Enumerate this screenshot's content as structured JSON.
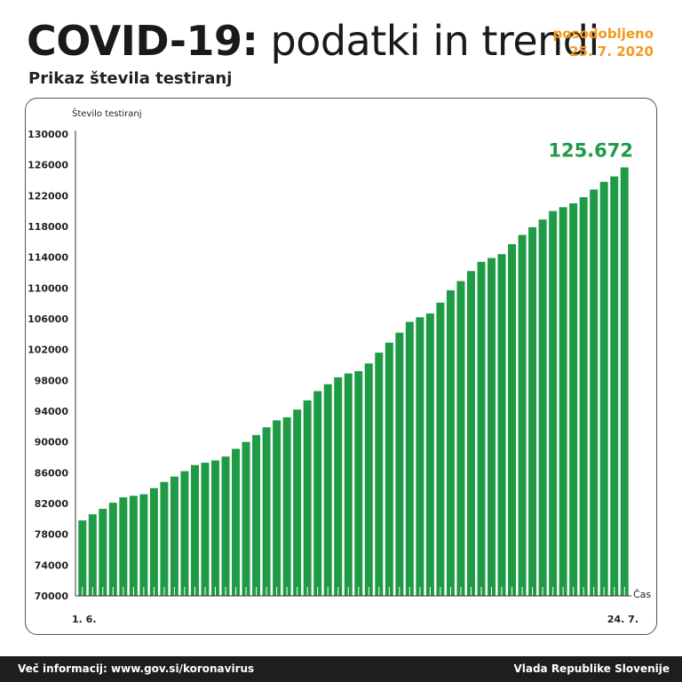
{
  "header": {
    "title_bold": "COVID-19:",
    "title_rest": "podatki in trendi",
    "updated_label": "posodobljeno",
    "updated_date": "25. 7. 2020",
    "subtitle": "Prikaz števila testiranj"
  },
  "footer": {
    "more_info": "Več informacij: www.gov.si/koronavirus",
    "publisher": "Vlada Republike Slovenije"
  },
  "colors": {
    "bar": "#1f9a45",
    "accent": "#f39a1e",
    "highlight": "#1f9a45"
  },
  "chart_data": {
    "type": "bar",
    "title": "Prikaz števila testiranj",
    "ylabel": "Število testiranj",
    "xlabel": "Čas",
    "x_start_label": "1. 6.",
    "x_end_label": "24. 7.",
    "highlight_label": "125.672",
    "ylim": [
      70000,
      130000
    ],
    "yticks": [
      70000,
      74000,
      78000,
      82000,
      86000,
      90000,
      94000,
      98000,
      102000,
      106000,
      110000,
      114000,
      118000,
      122000,
      126000,
      130000
    ],
    "ytick_labels": [
      "70000",
      "74000",
      "78000",
      "82000",
      "86000",
      "90000",
      "94000",
      "98000",
      "102000",
      "106000",
      "110000",
      "114000",
      "118000",
      "122000",
      "126000",
      "130000"
    ],
    "grid": false,
    "values": [
      79800,
      80600,
      81300,
      82100,
      82800,
      83000,
      83200,
      84000,
      84800,
      85500,
      86200,
      87000,
      87300,
      87600,
      88100,
      89100,
      90000,
      90900,
      91900,
      92800,
      93200,
      94200,
      95400,
      96600,
      97500,
      98400,
      98900,
      99200,
      100200,
      101600,
      102900,
      104200,
      105600,
      106200,
      106700,
      108100,
      109700,
      110900,
      112200,
      113400,
      113900,
      114400,
      115700,
      116900,
      117900,
      118900,
      120000,
      120500,
      121000,
      121800,
      122800,
      123800,
      124500,
      125672
    ]
  }
}
